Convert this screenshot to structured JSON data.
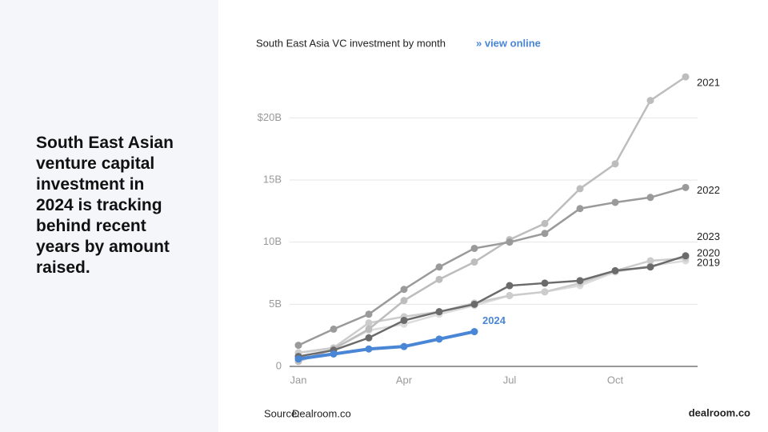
{
  "heading": [
    "South East Asian",
    "venture capital",
    "investment in",
    "2024 is tracking",
    "behind recent",
    "years by amount",
    "raised."
  ],
  "source": {
    "label": "Source:",
    "value": "Dealroom.co"
  },
  "logo": "dealroom.co",
  "chart_data": {
    "type": "line",
    "title": "South East Asia VC investment by month",
    "link": "» view online",
    "categories": [
      "Jan",
      null,
      null,
      "Apr",
      null,
      null,
      "Jul",
      null,
      null,
      "Oct",
      null,
      null
    ],
    "ylim": [
      0,
      23.5
    ],
    "yticks": [
      0,
      {
        "value": 5,
        "label": "5B"
      },
      {
        "value": 10,
        "label": "10B"
      },
      {
        "value": 15,
        "label": "15B"
      },
      {
        "value": 20,
        "label": "$20B"
      }
    ],
    "grid": true,
    "series": [
      {
        "name": "2019",
        "color": "#dcdcdc",
        "values": [
          1.1,
          1.4,
          2.9,
          3.4,
          4.2,
          4.9,
          5.7,
          6.0,
          6.5,
          7.6,
          8.1,
          8.5
        ]
      },
      {
        "name": "2020",
        "color": "#cccccc",
        "values": [
          1.1,
          1.5,
          3.5,
          4.0,
          4.4,
          5.1,
          5.7,
          6.0,
          6.7,
          7.7,
          8.5,
          8.7
        ]
      },
      {
        "name": "2021",
        "color": "#bdbdbd",
        "values": [
          0.4,
          1.4,
          3.0,
          5.3,
          7.0,
          8.4,
          10.2,
          11.5,
          14.3,
          16.3,
          21.4,
          23.3
        ]
      },
      {
        "name": "2022",
        "color": "#9a9a9a",
        "values": [
          1.7,
          3.0,
          4.2,
          6.2,
          8.0,
          9.5,
          10.0,
          10.7,
          12.7,
          13.2,
          13.6,
          14.4
        ]
      },
      {
        "name": "2023",
        "color": "#6b6b6b",
        "values": [
          0.8,
          1.3,
          2.3,
          3.7,
          4.4,
          5.0,
          6.5,
          6.7,
          6.9,
          7.7,
          8.0,
          8.9
        ]
      },
      {
        "name": "2024",
        "color": "#4a86d6",
        "values": [
          0.6,
          1.0,
          1.4,
          1.6,
          2.2,
          2.8,
          null,
          null,
          null,
          null,
          null,
          null
        ]
      }
    ]
  }
}
